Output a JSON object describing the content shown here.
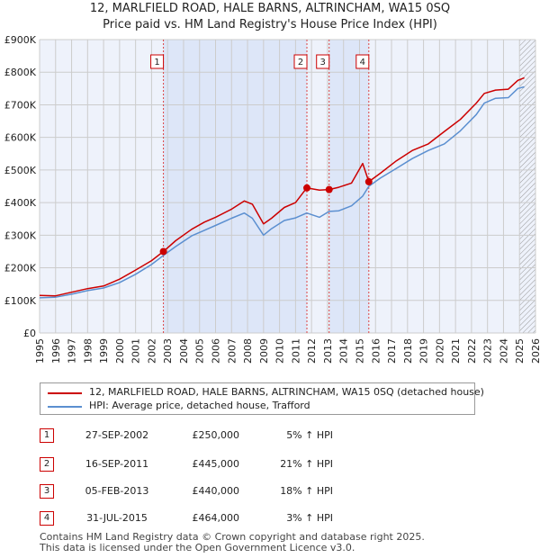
{
  "title_line1": "12, MARLFIELD ROAD, HALE BARNS, ALTRINCHAM, WA15 0SQ",
  "title_line2": "Price paid vs. HM Land Registry's House Price Index (HPI)",
  "chart_data": {
    "type": "line",
    "xlim": [
      1995,
      2026
    ],
    "ylim": [
      0,
      900000
    ],
    "x_ticks": [
      1995,
      1996,
      1997,
      1998,
      1999,
      2000,
      2001,
      2002,
      2003,
      2004,
      2005,
      2006,
      2007,
      2008,
      2009,
      2010,
      2011,
      2012,
      2013,
      2014,
      2015,
      2016,
      2017,
      2018,
      2019,
      2020,
      2021,
      2022,
      2023,
      2024,
      2025,
      2026
    ],
    "y_ticks": [
      0,
      100000,
      200000,
      300000,
      400000,
      500000,
      600000,
      700000,
      800000,
      900000
    ],
    "y_tick_labels": [
      "£0",
      "£100K",
      "£200K",
      "£300K",
      "£400K",
      "£500K",
      "£600K",
      "£700K",
      "£800K",
      "£900K"
    ],
    "colors": {
      "property": "#cc0000",
      "hpi": "#5b8fd0",
      "shade": "#dde6f8",
      "grid": "#cccccc",
      "plot_bg": "#eef2fb"
    },
    "series": [
      {
        "name": "12, MARLFIELD ROAD, HALE BARNS, ALTRINCHAM, WA15 0SQ (detached house)",
        "color": "#cc0000",
        "points": [
          [
            1995.0,
            115000
          ],
          [
            1996.0,
            114000
          ],
          [
            1997.0,
            125000
          ],
          [
            1998.0,
            136000
          ],
          [
            1999.0,
            144000
          ],
          [
            2000.0,
            165000
          ],
          [
            2001.0,
            193000
          ],
          [
            2002.0,
            222000
          ],
          [
            2002.74,
            250000
          ],
          [
            2003.5,
            283000
          ],
          [
            2004.5,
            318000
          ],
          [
            2005.3,
            340000
          ],
          [
            2006.0,
            355000
          ],
          [
            2007.0,
            380000
          ],
          [
            2007.8,
            405000
          ],
          [
            2008.3,
            395000
          ],
          [
            2009.0,
            335000
          ],
          [
            2009.5,
            352000
          ],
          [
            2010.3,
            385000
          ],
          [
            2011.0,
            400000
          ],
          [
            2011.7,
            445000
          ],
          [
            2012.5,
            438000
          ],
          [
            2013.1,
            440000
          ],
          [
            2013.7,
            447000
          ],
          [
            2014.5,
            460000
          ],
          [
            2015.2,
            520000
          ],
          [
            2015.58,
            464000
          ],
          [
            2016.3,
            490000
          ],
          [
            2017.3,
            528000
          ],
          [
            2018.3,
            560000
          ],
          [
            2019.3,
            580000
          ],
          [
            2020.3,
            618000
          ],
          [
            2021.3,
            655000
          ],
          [
            2022.3,
            705000
          ],
          [
            2022.8,
            735000
          ],
          [
            2023.5,
            745000
          ],
          [
            2024.3,
            748000
          ],
          [
            2024.9,
            775000
          ],
          [
            2025.3,
            783000
          ]
        ]
      },
      {
        "name": "HPI: Average price, detached house, Trafford",
        "color": "#5b8fd0",
        "points": [
          [
            1995.0,
            108000
          ],
          [
            1996.0,
            110000
          ],
          [
            1997.0,
            119000
          ],
          [
            1998.0,
            130000
          ],
          [
            1999.0,
            138000
          ],
          [
            2000.0,
            155000
          ],
          [
            2001.0,
            180000
          ],
          [
            2002.0,
            210000
          ],
          [
            2002.74,
            238000
          ],
          [
            2003.5,
            265000
          ],
          [
            2004.5,
            298000
          ],
          [
            2005.3,
            315000
          ],
          [
            2006.0,
            330000
          ],
          [
            2007.0,
            352000
          ],
          [
            2007.8,
            368000
          ],
          [
            2008.3,
            352000
          ],
          [
            2009.0,
            300000
          ],
          [
            2009.5,
            320000
          ],
          [
            2010.3,
            345000
          ],
          [
            2011.0,
            353000
          ],
          [
            2011.7,
            368000
          ],
          [
            2012.5,
            355000
          ],
          [
            2013.1,
            373000
          ],
          [
            2013.7,
            375000
          ],
          [
            2014.5,
            390000
          ],
          [
            2015.2,
            420000
          ],
          [
            2015.58,
            450000
          ],
          [
            2016.3,
            475000
          ],
          [
            2017.3,
            505000
          ],
          [
            2018.3,
            535000
          ],
          [
            2019.3,
            560000
          ],
          [
            2020.3,
            580000
          ],
          [
            2021.3,
            620000
          ],
          [
            2022.3,
            670000
          ],
          [
            2022.8,
            705000
          ],
          [
            2023.5,
            720000
          ],
          [
            2024.3,
            722000
          ],
          [
            2024.9,
            750000
          ],
          [
            2025.3,
            755000
          ]
        ]
      }
    ],
    "transactions": [
      {
        "label": "1",
        "date": "27-SEP-2002",
        "x": 2002.74,
        "price": 250000,
        "price_text": "£250,000",
        "hpi_text": "5% ↑ HPI"
      },
      {
        "label": "2",
        "date": "16-SEP-2011",
        "x": 2011.71,
        "price": 445000,
        "price_text": "£445,000",
        "hpi_text": "21% ↑ HPI"
      },
      {
        "label": "3",
        "date": "05-FEB-2013",
        "x": 2013.1,
        "price": 440000,
        "price_text": "£440,000",
        "hpi_text": "18% ↑ HPI"
      },
      {
        "label": "4",
        "date": "31-JUL-2015",
        "x": 2015.58,
        "price": 464000,
        "price_text": "£464,000",
        "hpi_text": "3% ↑ HPI"
      }
    ],
    "shaded_ranges": [
      [
        2002.74,
        2011.71
      ],
      [
        2013.1,
        2015.58
      ]
    ],
    "hatch_from": 2025.0
  },
  "legend": {
    "property_label": "12, MARLFIELD ROAD, HALE BARNS, ALTRINCHAM, WA15 0SQ (detached house)",
    "hpi_label": "HPI: Average price, detached house, Trafford"
  },
  "footer": {
    "line1": "Contains HM Land Registry data © Crown copyright and database right 2025.",
    "line2": "This data is licensed under the Open Government Licence v3.0."
  }
}
